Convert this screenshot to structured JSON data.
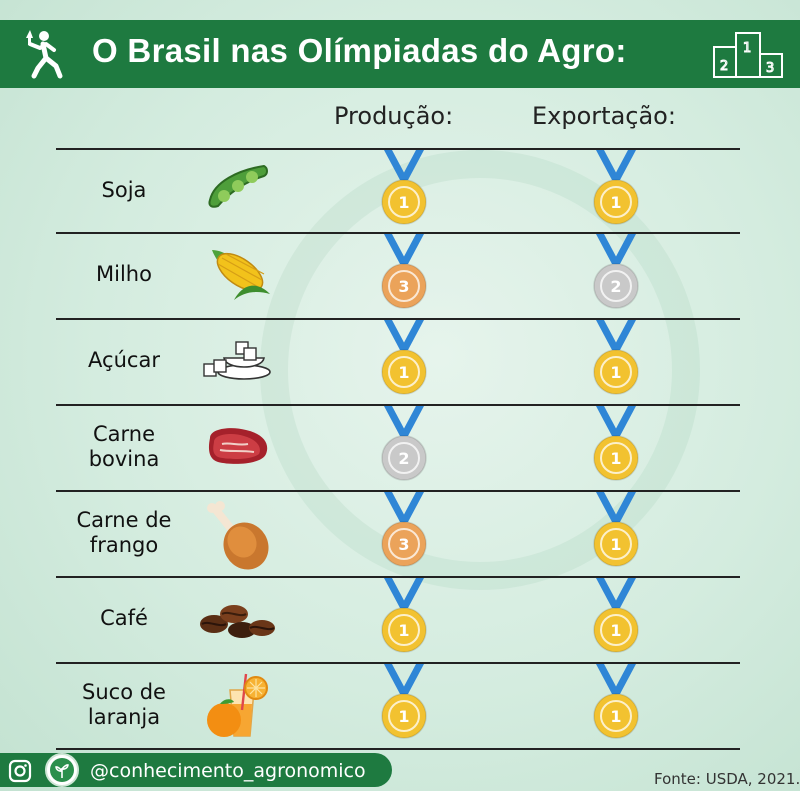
{
  "title": "O Brasil nas Olímpiadas do Agro:",
  "podium_numbers": [
    "1",
    "2",
    "3"
  ],
  "columns": {
    "production": "Produção:",
    "export": "Exportação:"
  },
  "rows": [
    {
      "label1": "Soja",
      "label2": "",
      "food_icon": "soybean-pod-icon",
      "production_place": "1",
      "export_place": "1"
    },
    {
      "label1": "Milho",
      "label2": "",
      "food_icon": "corn-icon",
      "production_place": "3",
      "export_place": "2"
    },
    {
      "label1": "Açúcar",
      "label2": "",
      "food_icon": "sugar-cubes-icon",
      "production_place": "1",
      "export_place": "1"
    },
    {
      "label1": "Carne",
      "label2": "bovina",
      "food_icon": "steak-icon",
      "production_place": "2",
      "export_place": "1"
    },
    {
      "label1": "Carne de",
      "label2": "frango",
      "food_icon": "chicken-leg-icon",
      "production_place": "3",
      "export_place": "1"
    },
    {
      "label1": "Café",
      "label2": "",
      "food_icon": "coffee-beans-icon",
      "production_place": "1",
      "export_place": "1"
    },
    {
      "label1": "Suco de",
      "label2": "laranja",
      "food_icon": "orange-juice-icon",
      "production_place": "1",
      "export_place": "1"
    }
  ],
  "medal_colors": {
    "1": "#f2c230",
    "2": "#c9c9c9",
    "3": "#eba35a"
  },
  "ribbon_color": "#2f86d6",
  "footer": {
    "handle": "@conhecimento_agronomico",
    "source": "Fonte: USDA, 2021."
  }
}
